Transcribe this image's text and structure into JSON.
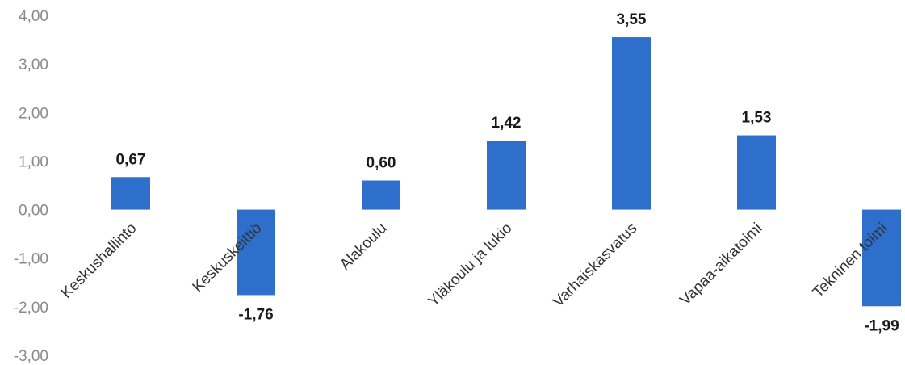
{
  "chart_data": {
    "type": "bar",
    "title": "",
    "xlabel": "",
    "ylabel": "",
    "categories": [
      "Keskushallinto",
      "Keskuskeittiö",
      "Alakoulu",
      "Yläkoulu ja lukio",
      "Varhaiskasvatus",
      "Vapaa-aikatoimi",
      "Tekninen toimi"
    ],
    "values": [
      0.67,
      -1.76,
      0.6,
      1.42,
      3.55,
      1.53,
      -1.99
    ],
    "data_labels": [
      "0,67",
      "-1,76",
      "0,60",
      "1,42",
      "3,55",
      "1,53",
      "-1,99"
    ],
    "y_ticks": [
      4,
      3,
      2,
      1,
      0,
      -1,
      -2,
      -3
    ],
    "y_tick_labels": [
      "4,00",
      "3,00",
      "2,00",
      "1,00",
      "0,00",
      "-1,00",
      "-2,00",
      "-3,00"
    ],
    "ylim": [
      -3,
      4
    ],
    "grid": false,
    "legend": "none",
    "bar_color": "#2e6fcc"
  }
}
